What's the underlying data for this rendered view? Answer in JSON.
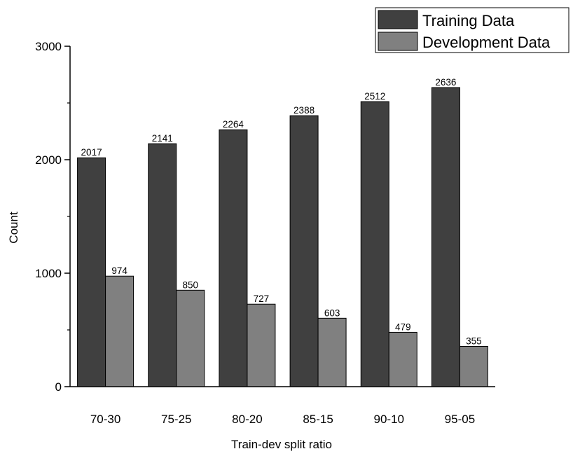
{
  "chart_data": {
    "type": "bar",
    "title": "",
    "xlabel": "Train-dev split ratio",
    "ylabel": "Count",
    "categories": [
      "70-30",
      "75-25",
      "80-20",
      "85-15",
      "90-10",
      "95-05"
    ],
    "series": [
      {
        "name": "Training Data",
        "color": "#404040",
        "values": [
          2017,
          2141,
          2264,
          2388,
          2512,
          2636
        ]
      },
      {
        "name": "Development Data",
        "color": "#808080",
        "values": [
          974,
          850,
          727,
          603,
          479,
          355
        ]
      }
    ],
    "y_ticks": [
      "0",
      "1000",
      "2000",
      "3000"
    ],
    "ylim": [
      0,
      3000
    ],
    "grid": false,
    "legend_position": "top-right",
    "data_labels": true
  }
}
